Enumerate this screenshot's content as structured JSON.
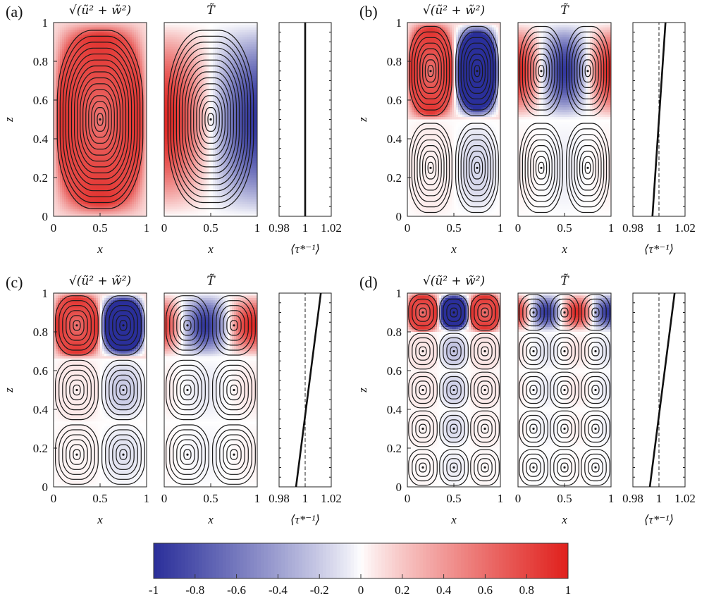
{
  "chart_data": {
    "type": "heatmap",
    "colormap": {
      "low_color": "#2a2f9a",
      "mid_color": "#ffffff",
      "high_color": "#e0201c",
      "range": [
        -1,
        1
      ],
      "ticks": [
        "-1",
        "-0.8",
        "-0.6",
        "-0.4",
        "-0.2",
        "0",
        "0.2",
        "0.4",
        "0.6",
        "0.8",
        "1"
      ]
    },
    "panels": [
      {
        "label": "(a)",
        "cells_x": 1,
        "cells_z": 1,
        "t_shift": 0.0,
        "profile": {
          "x": [
            1.0,
            1.0
          ],
          "z": [
            0,
            1
          ]
        }
      },
      {
        "label": "(b)",
        "cells_x": 2,
        "cells_z": 2,
        "t_shift": 0.0,
        "profile": {
          "x": [
            0.995,
            1.005
          ],
          "z": [
            0,
            1
          ]
        }
      },
      {
        "label": "(c)",
        "cells_x": 2,
        "cells_z": 3,
        "t_shift": 0.12,
        "profile": {
          "x": [
            0.993,
            1.012
          ],
          "z": [
            0,
            1
          ]
        }
      },
      {
        "label": "(d)",
        "cells_x": 3,
        "cells_z": 5,
        "t_shift": 0.1,
        "profile": {
          "x": [
            0.993,
            1.012
          ],
          "z": [
            0,
            1
          ]
        }
      }
    ],
    "velocity_title": "√(ũ² + w̃²)",
    "temperature_title": "T̃",
    "field_x_ticks": [
      "0",
      "0.5",
      "1"
    ],
    "field_z_ticks": [
      "0",
      "0.2",
      "0.4",
      "0.6",
      "0.8",
      "1"
    ],
    "profile_x_ticks": [
      "0.98",
      "1",
      "1.02"
    ],
    "profile_xlim": [
      0.98,
      1.02
    ],
    "xlabel": "x",
    "zlabel": "z",
    "profile_xlabel": "⟨τ*⁻¹⟩"
  }
}
